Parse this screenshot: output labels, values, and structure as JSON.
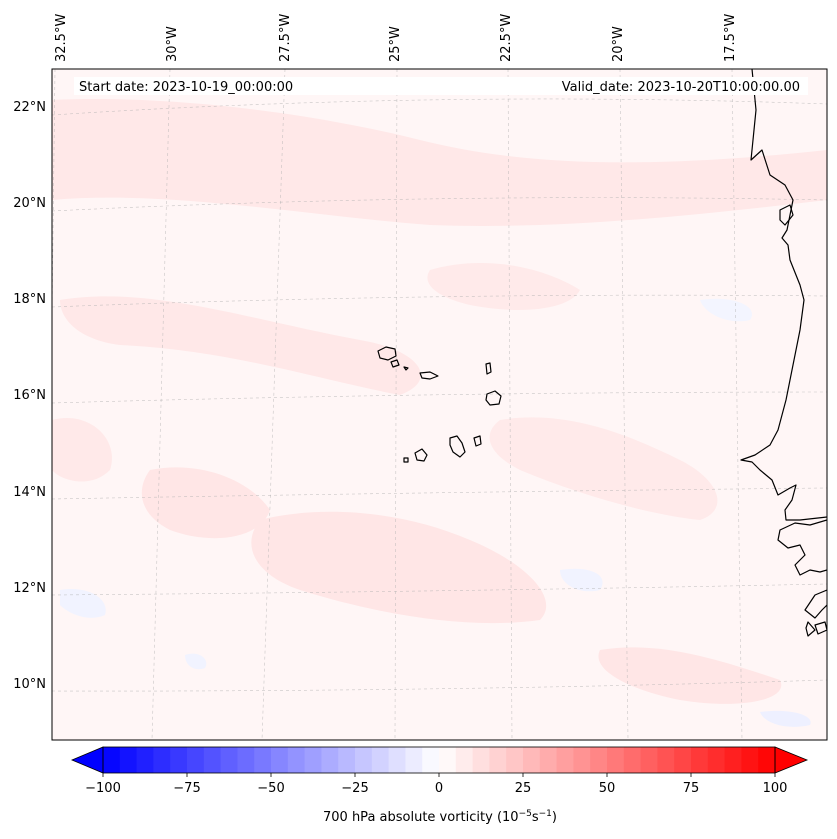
{
  "map": {
    "start_date": "Start date: 2023-10-19_00:00:00",
    "valid_date": "Valid_date: 2023-10-20T10:00:00.00",
    "lon_labels": [
      "32.5°W",
      "30°W",
      "27.5°W",
      "25°W",
      "22.5°W",
      "20°W",
      "17.5°W"
    ],
    "lat_labels": [
      "22°N",
      "20°N",
      "18°N",
      "16°N",
      "14°N",
      "12°N",
      "10°N"
    ],
    "colorbar": {
      "ticks": [
        "−100",
        "−75",
        "−50",
        "−25",
        "0",
        "25",
        "50",
        "75",
        "100"
      ],
      "tick_values": [
        -100,
        -75,
        -50,
        -25,
        0,
        25,
        50,
        75,
        100
      ],
      "min": -100,
      "max": 100,
      "label": "700 hPa absolute vorticity (10",
      "label_sup1": "−5",
      "label_mid": "s",
      "label_sup2": "−1",
      "label_end": ")",
      "colormap": "bwr",
      "extend": "both"
    },
    "colors": {
      "ocean_bg": "#fff6f6",
      "positive_patch": "#ffe6e6",
      "negative_patch": "#f2f4ff",
      "coastline": "#000000"
    }
  }
}
